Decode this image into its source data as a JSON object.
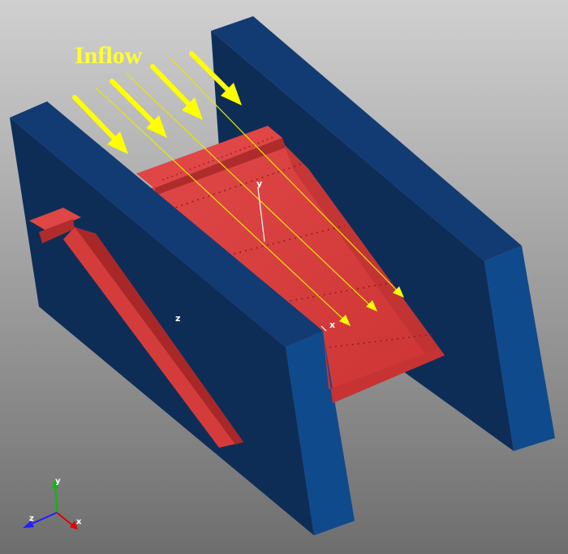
{
  "annotation": {
    "label": "Inflow"
  },
  "model_axes": {
    "y_label": "y",
    "x_label": "x",
    "z_label": "z"
  },
  "triad": {
    "y_label": "y",
    "z_label": "z",
    "x_label": "x",
    "y_color": "#00c000",
    "z_color": "#2020ff",
    "x_color": "#e00000"
  },
  "colors": {
    "background_top": "#d0d0d0",
    "background_bottom": "#6e6e6e",
    "wall_face": "#0d2d57",
    "wall_top": "#123b73",
    "wall_end": "#0f4a8c",
    "surface_light": "#e04040",
    "surface_mid": "#cf3a3a",
    "surface_dark": "#a82828",
    "arrow": "#ffff00",
    "streamline": "#e8e800",
    "label_yellow": "#ffff33"
  }
}
